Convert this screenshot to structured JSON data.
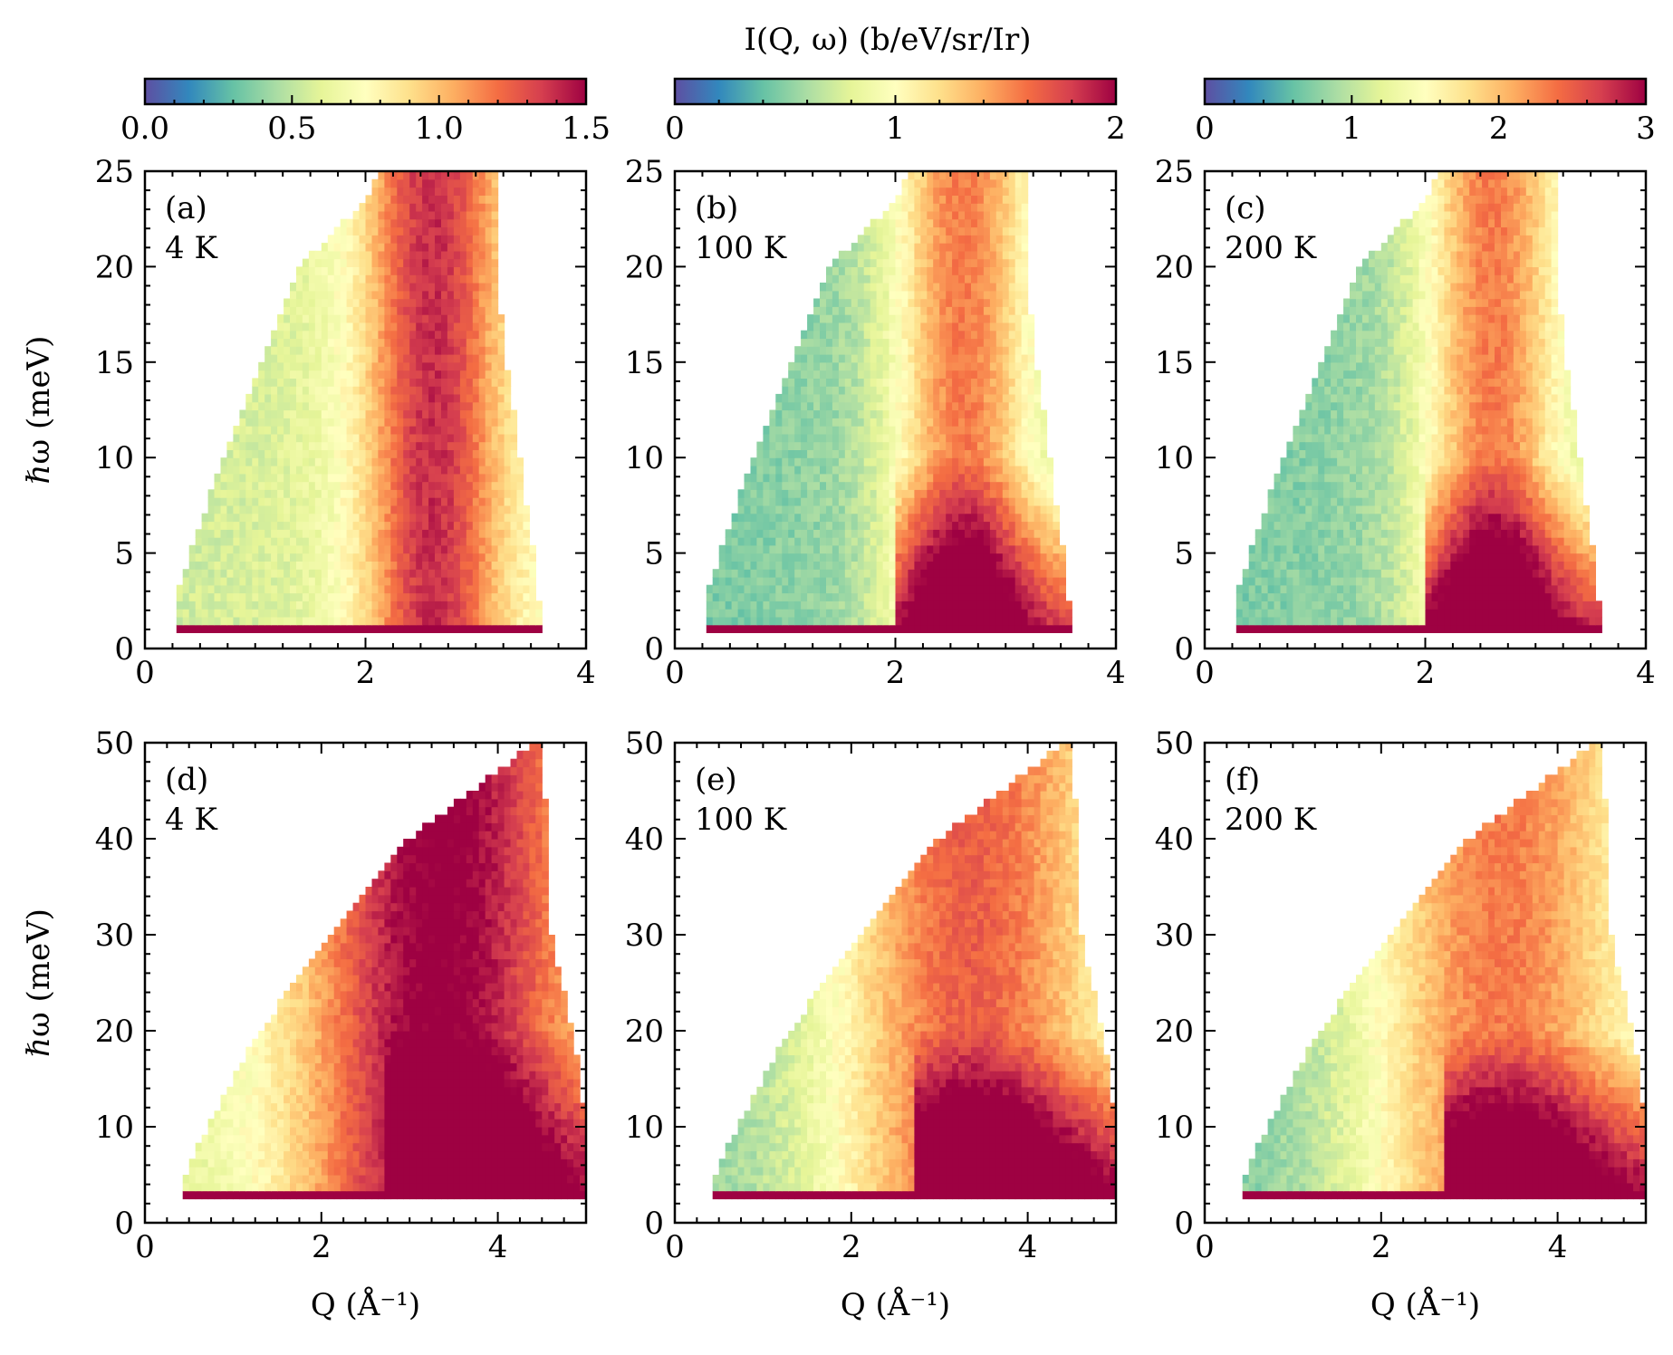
{
  "figure": {
    "colorbar_title": "I(Q, ω) (b/eV/sr/Ir)",
    "colormap": [
      "#5e4fa2",
      "#3288bd",
      "#66c2a5",
      "#abdda4",
      "#e6f598",
      "#ffffbf",
      "#fee08b",
      "#fdae61",
      "#f46d43",
      "#d53e4f",
      "#9e0142"
    ]
  },
  "chart_data": [
    {
      "type": "heatmap",
      "id": "a",
      "label": "(a)",
      "temperature": "4 K",
      "xlabel": "",
      "ylabel": "ℏω (meV)",
      "xlim": [
        0,
        4
      ],
      "ylim": [
        0,
        25
      ],
      "x_ticks": [
        "0",
        "2",
        "4"
      ],
      "y_ticks": [
        "0",
        "5",
        "10",
        "15",
        "20",
        "25"
      ],
      "colorbar": {
        "range": [
          0,
          1.5
        ],
        "ticks": [
          "0.0",
          "0.5",
          "1.0",
          "1.5"
        ]
      },
      "coverage": {
        "q_min": [
          [
            1.2,
            0.27
          ],
          [
            3,
            0.3
          ],
          [
            10,
            0.7
          ],
          [
            20,
            1.4
          ],
          [
            23.5,
            2.0
          ],
          [
            25,
            2.1
          ]
        ],
        "q_max": [
          [
            0,
            3.66
          ],
          [
            1.2,
            3.6
          ],
          [
            5,
            3.52
          ],
          [
            10,
            3.4
          ],
          [
            17,
            3.23
          ],
          [
            25,
            3.2
          ]
        ]
      },
      "features": {
        "elastic_cutoff": 1.4,
        "dispersion_center_q": 2.6,
        "dispersion_width": 0.45,
        "low_q_value": 0.35,
        "peak_value": 0.85,
        "hot_low_e": 0.0
      }
    },
    {
      "type": "heatmap",
      "id": "b",
      "label": "(b)",
      "temperature": "100 K",
      "xlabel": "",
      "ylabel": "",
      "xlim": [
        0,
        4
      ],
      "ylim": [
        0,
        25
      ],
      "x_ticks": [
        "0",
        "2",
        "4"
      ],
      "y_ticks": [
        "0",
        "5",
        "10",
        "15",
        "20",
        "25"
      ],
      "colorbar": {
        "range": [
          0,
          2
        ],
        "ticks": [
          "0",
          "1",
          "2"
        ]
      },
      "coverage": {
        "q_min": [
          [
            1.2,
            0.27
          ],
          [
            3,
            0.3
          ],
          [
            10,
            0.7
          ],
          [
            20,
            1.4
          ],
          [
            23.5,
            2.0
          ],
          [
            25,
            2.1
          ]
        ],
        "q_max": [
          [
            0,
            3.66
          ],
          [
            1.2,
            3.6
          ],
          [
            5,
            3.52
          ],
          [
            10,
            3.4
          ],
          [
            17,
            3.23
          ],
          [
            25,
            3.2
          ]
        ]
      },
      "features": {
        "elastic_cutoff": 1.4,
        "dispersion_center_q": 2.6,
        "dispersion_width": 0.45,
        "low_q_value": 0.22,
        "peak_value": 0.7,
        "hot_low_e": 0.9
      }
    },
    {
      "type": "heatmap",
      "id": "c",
      "label": "(c)",
      "temperature": "200 K",
      "xlabel": "",
      "ylabel": "",
      "xlim": [
        0,
        4
      ],
      "ylim": [
        0,
        25
      ],
      "x_ticks": [
        "0",
        "2",
        "4"
      ],
      "y_ticks": [
        "0",
        "5",
        "10",
        "15",
        "20",
        "25"
      ],
      "colorbar": {
        "range": [
          0,
          3
        ],
        "ticks": [
          "0",
          "1",
          "2",
          "3"
        ]
      },
      "coverage": {
        "q_min": [
          [
            1.2,
            0.27
          ],
          [
            3,
            0.3
          ],
          [
            10,
            0.7
          ],
          [
            20,
            1.4
          ],
          [
            23.5,
            2.0
          ],
          [
            25,
            2.1
          ]
        ],
        "q_max": [
          [
            0,
            3.66
          ],
          [
            1.2,
            3.6
          ],
          [
            5,
            3.52
          ],
          [
            10,
            3.4
          ],
          [
            17,
            3.23
          ],
          [
            25,
            3.2
          ]
        ]
      },
      "features": {
        "elastic_cutoff": 1.4,
        "dispersion_center_q": 2.6,
        "dispersion_width": 0.45,
        "low_q_value": 0.22,
        "peak_value": 0.7,
        "hot_low_e": 0.95
      }
    },
    {
      "type": "heatmap",
      "id": "d",
      "label": "(d)",
      "temperature": "4 K",
      "xlabel": "Q (Å⁻¹)",
      "ylabel": "ℏω (meV)",
      "xlim": [
        0,
        5
      ],
      "ylim": [
        0,
        50
      ],
      "x_ticks": [
        "0",
        "2",
        "4"
      ],
      "y_ticks": [
        "0",
        "10",
        "20",
        "30",
        "40",
        "50"
      ],
      "colorbar": {
        "range": [
          0,
          1.5
        ],
        "ticks": [
          "0.0",
          "0.5",
          "1.0",
          "1.5"
        ]
      },
      "coverage": {
        "q_min": [
          [
            3,
            0.4
          ],
          [
            8,
            0.6
          ],
          [
            20,
            1.3
          ],
          [
            30,
            2.1
          ],
          [
            40,
            3.0
          ],
          [
            50,
            4.4
          ]
        ],
        "q_max": [
          [
            0,
            5.0
          ],
          [
            10,
            5.0
          ],
          [
            20,
            4.85
          ],
          [
            30,
            4.6
          ],
          [
            42,
            4.55
          ],
          [
            50,
            4.5
          ]
        ]
      },
      "features": {
        "elastic_cutoff": 3.2,
        "dispersion_center_q": 3.3,
        "dispersion_width": 1.1,
        "low_q_value": 0.38,
        "peak_value": 0.95,
        "hot_low_e": 0.6
      }
    },
    {
      "type": "heatmap",
      "id": "e",
      "label": "(e)",
      "temperature": "100 K",
      "xlabel": "Q (Å⁻¹)",
      "ylabel": "",
      "xlim": [
        0,
        5
      ],
      "ylim": [
        0,
        50
      ],
      "x_ticks": [
        "0",
        "2",
        "4"
      ],
      "y_ticks": [
        "0",
        "10",
        "20",
        "30",
        "40",
        "50"
      ],
      "colorbar": {
        "range": [
          0,
          2
        ],
        "ticks": [
          "0",
          "1",
          "2"
        ]
      },
      "coverage": {
        "q_min": [
          [
            3,
            0.4
          ],
          [
            8,
            0.6
          ],
          [
            20,
            1.3
          ],
          [
            30,
            2.1
          ],
          [
            40,
            3.0
          ],
          [
            50,
            4.4
          ]
        ],
        "q_max": [
          [
            0,
            5.0
          ],
          [
            10,
            5.0
          ],
          [
            20,
            4.85
          ],
          [
            30,
            4.6
          ],
          [
            42,
            4.55
          ],
          [
            50,
            4.5
          ]
        ]
      },
      "features": {
        "elastic_cutoff": 3.2,
        "dispersion_center_q": 3.3,
        "dispersion_width": 1.1,
        "low_q_value": 0.25,
        "peak_value": 0.75,
        "hot_low_e": 0.95
      }
    },
    {
      "type": "heatmap",
      "id": "f",
      "label": "(f)",
      "temperature": "200 K",
      "xlabel": "Q (Å⁻¹)",
      "ylabel": "",
      "xlim": [
        0,
        5
      ],
      "ylim": [
        0,
        50
      ],
      "x_ticks": [
        "0",
        "2",
        "4"
      ],
      "y_ticks": [
        "0",
        "10",
        "20",
        "30",
        "40",
        "50"
      ],
      "colorbar": {
        "range": [
          0,
          3
        ],
        "ticks": [
          "0",
          "1",
          "2",
          "3"
        ]
      },
      "coverage": {
        "q_min": [
          [
            3,
            0.4
          ],
          [
            8,
            0.6
          ],
          [
            20,
            1.3
          ],
          [
            30,
            2.1
          ],
          [
            40,
            3.0
          ],
          [
            50,
            4.4
          ]
        ],
        "q_max": [
          [
            0,
            5.0
          ],
          [
            10,
            5.0
          ],
          [
            20,
            4.85
          ],
          [
            30,
            4.6
          ],
          [
            42,
            4.55
          ],
          [
            50,
            4.5
          ]
        ]
      },
      "features": {
        "elastic_cutoff": 3.2,
        "dispersion_center_q": 3.3,
        "dispersion_width": 1.1,
        "low_q_value": 0.22,
        "peak_value": 0.7,
        "hot_low_e": 0.95
      }
    }
  ]
}
